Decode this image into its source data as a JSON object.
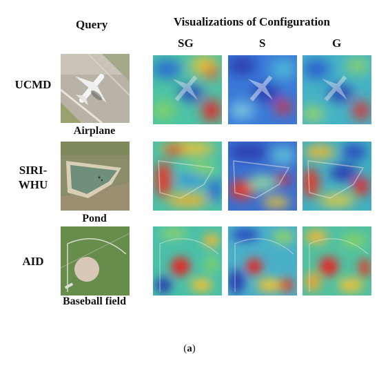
{
  "headers": {
    "query": "Query",
    "visualizations": "Visualizations of Configuration",
    "config_sg": "SG",
    "config_s": "S",
    "config_g": "G"
  },
  "rows": [
    {
      "dataset_line1": "UCMD",
      "dataset_line2": "",
      "class_label": "Airplane"
    },
    {
      "dataset_line1": "SIRI-",
      "dataset_line2": "WHU",
      "class_label": "Pond"
    },
    {
      "dataset_line1": "AID",
      "dataset_line2": "",
      "class_label": "Baseball field"
    }
  ],
  "caption": {
    "open": "(",
    "letter": "a",
    "close": ")"
  },
  "colors": {
    "heat_low": "#2a3fb0",
    "heat_mid": "#33c0b8",
    "heat_high": "#e02a2a",
    "grass": "#6b8f4e",
    "water": "#6f8f7a",
    "tarmac": "#b9b2a6"
  }
}
